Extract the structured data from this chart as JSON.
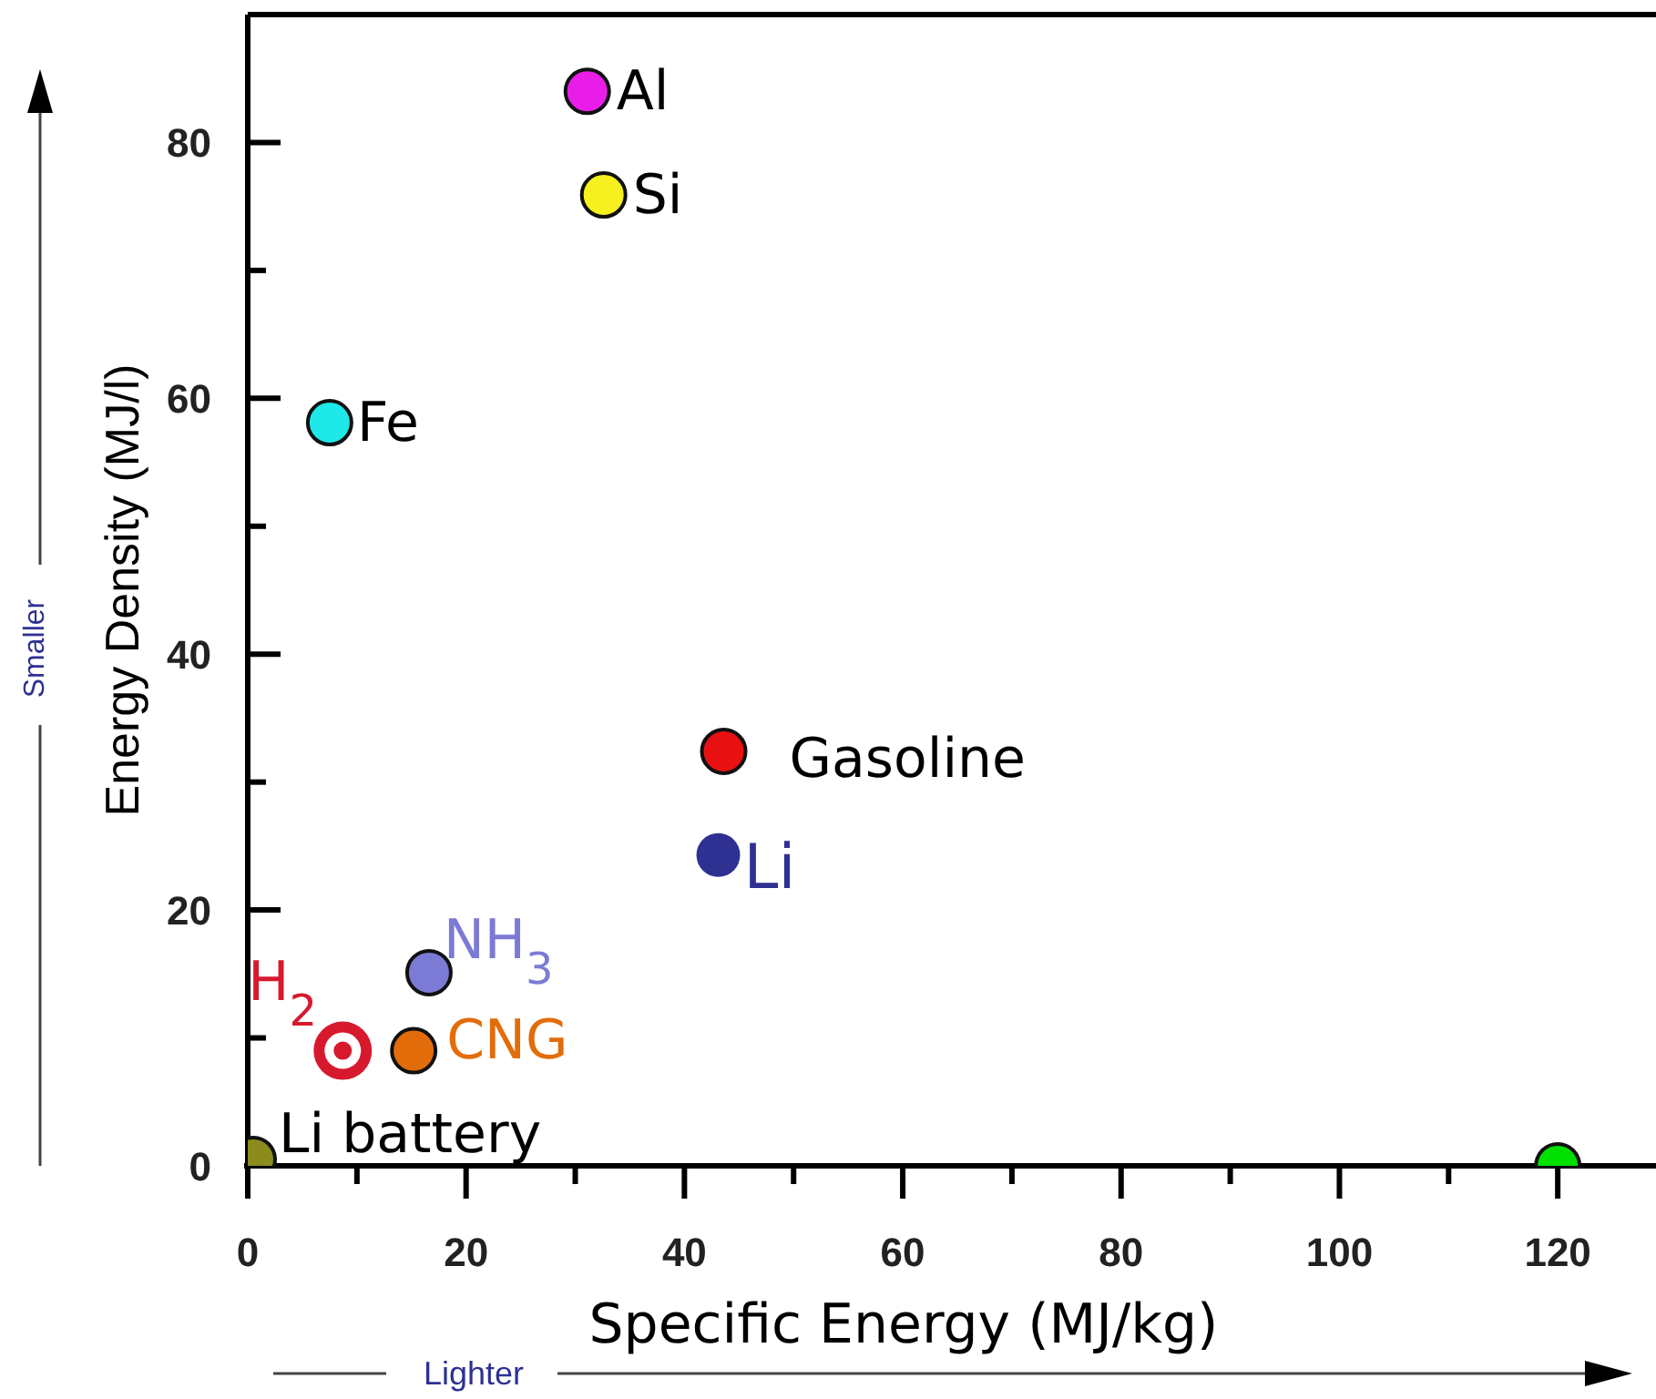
{
  "chart_data": {
    "type": "scatter",
    "xlabel": "Specific Energy (MJ/kg)",
    "ylabel": "Energy Density (MJ/l)",
    "xlim": [
      0,
      129
    ],
    "ylim": [
      0,
      90
    ],
    "xticks": [
      0,
      {
        "value": 10,
        "label": null
      },
      20,
      {
        "value": 30,
        "label": null
      },
      40,
      {
        "value": 50,
        "label": null
      },
      60,
      {
        "value": 70,
        "label": null
      },
      80,
      {
        "value": 90,
        "label": null
      },
      100,
      {
        "value": 110,
        "label": null
      },
      120
    ],
    "yticks": [
      0,
      {
        "value": 10,
        "label": null
      },
      20,
      {
        "value": 30,
        "label": null
      },
      40,
      {
        "value": 50,
        "label": null
      },
      60,
      {
        "value": 70,
        "label": null
      },
      80
    ],
    "marker": "circle",
    "grid": false,
    "legend": false,
    "annotations": [
      "Smaller",
      "Lighter"
    ],
    "series": [
      {
        "name": "Al",
        "color": "#e81ee8",
        "x": [
          31.1
        ],
        "values": [
          84.0
        ]
      },
      {
        "name": "Si",
        "color": "#f5f01e",
        "x": [
          32.6
        ],
        "values": [
          75.9
        ]
      },
      {
        "name": "Fe",
        "color": "#1ee8e8",
        "x": [
          7.5
        ],
        "values": [
          58.1
        ]
      },
      {
        "name": "Gasoline",
        "color": "#e81010",
        "x": [
          43.6
        ],
        "values": [
          32.4
        ]
      },
      {
        "name": "Li",
        "color": "#2e3192",
        "x": [
          43.1
        ],
        "values": [
          24.3
        ]
      },
      {
        "name": "NH$_{3}$",
        "color": "#7b7bd6",
        "x": [
          16.6
        ],
        "values": [
          15.1
        ]
      },
      {
        "name": "CNG",
        "color": "#e36c0a",
        "x": [
          15.2
        ],
        "values": [
          9.0
        ]
      },
      {
        "name": "H$_{2}$",
        "color": "#d7192e",
        "x": [
          8.7
        ],
        "values": [
          9.0
        ]
      },
      {
        "name": "Li battery",
        "color": "#8b8b1e",
        "x": [
          0.5
        ],
        "values": [
          0.5
        ]
      },
      {
        "color": "#00e000",
        "x": [
          120
        ],
        "values": [
          0
        ]
      }
    ]
  }
}
